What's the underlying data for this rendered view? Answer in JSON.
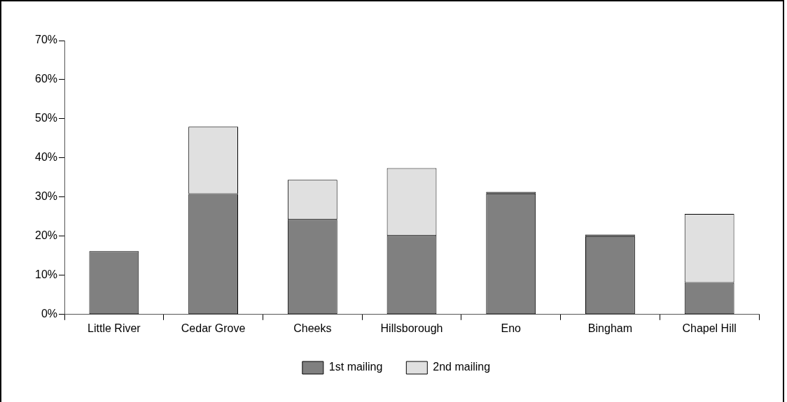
{
  "chart_data": {
    "type": "bar",
    "stacked": true,
    "categories": [
      "Little River",
      "Cedar Grove",
      "Cheeks",
      "Hillsborough",
      "Eno",
      "Bingham",
      "Chapel Hill"
    ],
    "series": [
      {
        "name": "1st mailing",
        "color": "#808080",
        "values": [
          16.2,
          30.8,
          24.2,
          20.1,
          30.9,
          20.0,
          8.1
        ]
      },
      {
        "name": "2nd mailing",
        "color": "#e0e0e0",
        "values": [
          0,
          17.2,
          10.2,
          17.3,
          0.4,
          0.4,
          17.6
        ]
      }
    ],
    "ylim": [
      0,
      70
    ],
    "yticks": [
      {
        "value": 0,
        "label": "0%"
      },
      {
        "value": 10,
        "label": "10%"
      },
      {
        "value": 20,
        "label": "20%"
      },
      {
        "value": 30,
        "label": "30%"
      },
      {
        "value": 40,
        "label": "40%"
      },
      {
        "value": 50,
        "label": "50%"
      },
      {
        "value": 60,
        "label": "60%"
      },
      {
        "value": 70,
        "label": "70%"
      }
    ],
    "grid": false,
    "legend": "bottom"
  }
}
